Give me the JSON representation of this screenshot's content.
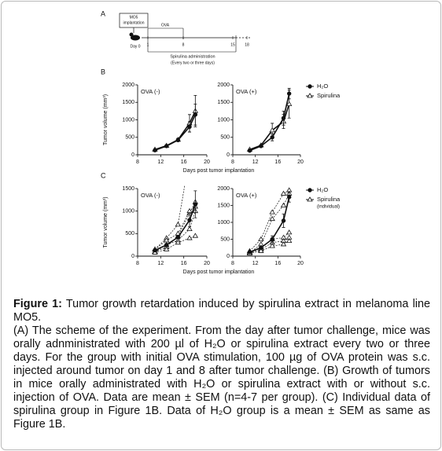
{
  "scheme": {
    "panel": "A",
    "box": [
      "MO5",
      "implantation"
    ],
    "day0": "Day 0",
    "days": [
      "1",
      "8",
      "15",
      "18"
    ],
    "ova": "OVA",
    "admin": "Spirulina administration",
    "note": "(Every two or three days)"
  },
  "chart_data": [
    {
      "type": "line",
      "panel": "B",
      "title": "OVA (-)",
      "ylabel": "Tumor volume (mm³)",
      "xlabel": "Days post tumor implantation",
      "xlim": [
        8,
        20
      ],
      "xticks": [
        8,
        12,
        16,
        20
      ],
      "ylim": [
        0,
        2000
      ],
      "yticks": [
        0,
        500,
        1000,
        1500,
        2000
      ],
      "x": [
        11,
        13,
        15,
        17,
        18
      ],
      "series": [
        {
          "marker": "triangle",
          "filled": false,
          "line_style": "solid",
          "color": "#111",
          "values": [
            150,
            260,
            430,
            900,
            1250
          ],
          "errors": [
            null,
            null,
            40,
            250,
            450
          ]
        },
        {
          "marker": "circle",
          "filled": true,
          "line_style": "solid",
          "color": "#111",
          "values": [
            130,
            250,
            420,
            800,
            1150
          ],
          "errors": [
            null,
            null,
            30,
            150,
            300
          ]
        }
      ]
    },
    {
      "type": "line",
      "title": "OVA (+)",
      "xlim": [
        8,
        20
      ],
      "xticks": [
        8,
        12,
        16,
        20
      ],
      "ylim": [
        0,
        2000
      ],
      "yticks": [
        0,
        500,
        1000,
        1500,
        2000
      ],
      "x": [
        11,
        13,
        15,
        17,
        18
      ],
      "legend": [
        {
          "marker": "circle",
          "filled": true,
          "label": "H₂O"
        },
        {
          "marker": "triangle",
          "filled": false,
          "label": "Spirulina"
        }
      ],
      "series": [
        {
          "marker": "triangle",
          "filled": false,
          "line_style": "solid",
          "color": "#111",
          "values": [
            150,
            270,
            700,
            950,
            1450
          ],
          "errors": [
            null,
            null,
            200,
            200,
            400
          ]
        },
        {
          "marker": "circle",
          "filled": true,
          "line_style": "solid",
          "color": "#111",
          "values": [
            120,
            250,
            500,
            1050,
            1750
          ],
          "errors": [
            null,
            null,
            100,
            200,
            150
          ]
        }
      ]
    },
    {
      "type": "line",
      "panel": "C",
      "title": "OVA (-)",
      "ylabel": "Tumor volume (mm³)",
      "xlabel": "Days post tumor implantation",
      "xlim": [
        8,
        20
      ],
      "xticks": [
        8,
        12,
        16,
        20
      ],
      "ylim": [
        0,
        1500
      ],
      "yticks": [
        0,
        500,
        1000,
        1500
      ],
      "x": [
        11,
        13,
        15,
        17,
        18
      ],
      "series": [
        {
          "marker": "triangle",
          "filled": false,
          "line_style": "dashed",
          "color": "#111",
          "values": [
            150,
            400,
            700,
            2200,
            null
          ]
        },
        {
          "marker": "triangle",
          "filled": false,
          "line_style": "dashed",
          "color": "#111",
          "values": [
            100,
            200,
            450,
            950,
            1200
          ]
        },
        {
          "marker": "triangle",
          "filled": false,
          "line_style": "dashed",
          "color": "#111",
          "values": [
            150,
            350,
            500,
            1000,
            1100
          ]
        },
        {
          "marker": "triangle",
          "filled": false,
          "line_style": "dashed",
          "color": "#111",
          "values": [
            100,
            250,
            350,
            600,
            1000
          ]
        },
        {
          "marker": "triangle",
          "filled": false,
          "line_style": "dashed",
          "color": "#111",
          "values": [
            80,
            150,
            300,
            400,
            450
          ]
        },
        {
          "marker": "circle",
          "filled": true,
          "line_style": "solid",
          "color": "#111",
          "values": [
            130,
            250,
            420,
            800,
            1150
          ],
          "errors": [
            null,
            null,
            30,
            150,
            300
          ]
        }
      ]
    },
    {
      "type": "line",
      "title": "OVA (+)",
      "xlim": [
        8,
        20
      ],
      "xticks": [
        8,
        12,
        16,
        20
      ],
      "ylim": [
        0,
        2000
      ],
      "yticks": [
        0,
        500,
        1000,
        1500,
        2000
      ],
      "x": [
        11,
        13,
        15,
        17,
        18
      ],
      "legend": [
        {
          "marker": "circle",
          "filled": true,
          "label": "H₂O"
        },
        {
          "marker": "triangle",
          "filled": false,
          "label": "Spirulina",
          "note": "(individual)"
        }
      ],
      "series": [
        {
          "marker": "triangle",
          "filled": false,
          "line_style": "dashed",
          "color": "#111",
          "values": [
            150,
            500,
            1300,
            1850,
            1950
          ]
        },
        {
          "marker": "triangle",
          "filled": false,
          "line_style": "dashed",
          "color": "#111",
          "values": [
            100,
            350,
            1100,
            1500,
            1850
          ]
        },
        {
          "marker": "triangle",
          "filled": false,
          "line_style": "dashed",
          "color": "#111",
          "values": [
            120,
            250,
            500,
            550,
            700
          ]
        },
        {
          "marker": "triangle",
          "filled": false,
          "line_style": "dashed",
          "color": "#111",
          "values": [
            100,
            200,
            400,
            450,
            550
          ]
        },
        {
          "marker": "triangle",
          "filled": false,
          "line_style": "dashed",
          "color": "#111",
          "values": [
            80,
            150,
            300,
            350,
            450
          ]
        },
        {
          "marker": "circle",
          "filled": true,
          "line_style": "solid",
          "color": "#111",
          "values": [
            120,
            250,
            500,
            1050,
            1750
          ],
          "errors": [
            null,
            null,
            100,
            200,
            150
          ]
        }
      ]
    }
  ],
  "caption": {
    "label": "Figure 1:",
    "title": " Tumor growth retardation induced by spirulina extract in melanoma line MO5.",
    "body": "(A) The scheme of the experiment. From the day after tumor challenge, mice was orally adnministrated with 200 µl of H₂O or spirulina extract every two or three days. For the group with initial OVA stimulation, 100 µg of OVA protein was s.c. injected around tumor on day 1 and 8 after tumor challenge. (B) Growth of tumors in mice orally administrated with H₂O or spirulina extract with or without s.c. injection of OVA. Data are mean ± SEM (n=4-7 per group). (C) Individual data of spirulina group in Figure 1B. Data of H₂O group is a mean ± SEM as same as Figure 1B."
  }
}
